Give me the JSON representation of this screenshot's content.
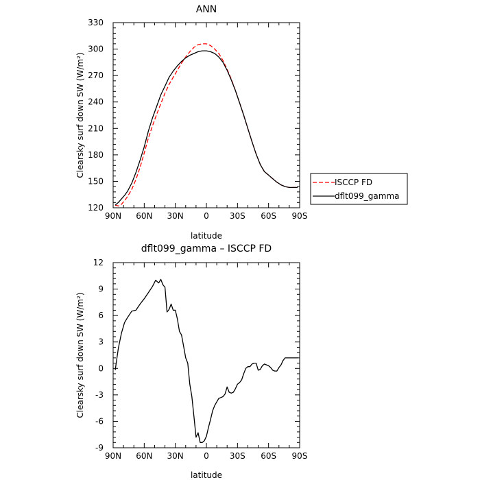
{
  "chart_data": [
    {
      "type": "line",
      "title": "ANN",
      "xlabel": "latitude",
      "ylabel": "Clearsky surf down SW (W/m²)",
      "xlim": [
        90,
        -90
      ],
      "ylim": [
        120,
        330
      ],
      "x_tick_values": [
        90,
        60,
        30,
        0,
        -30,
        -60,
        -90
      ],
      "x_tick_labels": [
        "90N",
        "60N",
        "30N",
        "0",
        "30S",
        "60S",
        "90S"
      ],
      "y_tick_values": [
        120,
        150,
        180,
        210,
        240,
        270,
        300,
        330
      ],
      "y_tick_labels": [
        "120",
        "150",
        "180",
        "210",
        "240",
        "270",
        "300",
        "330"
      ],
      "grid": false,
      "legend_position": "right",
      "series": [
        {
          "name": "ISCCP FD",
          "color": "#ff0000",
          "dash": "dashed",
          "x": [
            88,
            85,
            82,
            79,
            76,
            72,
            68,
            64,
            60,
            56,
            52,
            48,
            44,
            40,
            36,
            32,
            28,
            24,
            20,
            16,
            12,
            8,
            4,
            0,
            -4,
            -8,
            -12,
            -16,
            -20,
            -24,
            -28,
            -32,
            -36,
            -40,
            -44,
            -48,
            -52,
            -56,
            -60,
            -64,
            -68,
            -72,
            -76,
            -80,
            -84,
            -88
          ],
          "y": [
            123,
            122,
            124,
            128,
            133,
            141,
            152,
            166,
            182,
            199,
            213,
            226,
            238,
            250,
            260,
            268,
            276,
            284,
            291,
            297,
            302,
            305,
            306,
            306,
            304,
            300,
            295,
            287,
            277,
            266,
            253,
            239,
            225,
            210,
            195,
            181,
            169,
            161,
            157,
            153,
            149,
            146,
            144,
            143,
            143,
            143
          ]
        },
        {
          "name": "dflt099_gamma",
          "color": "#000000",
          "dash": "solid",
          "x": [
            88,
            85,
            82,
            79,
            76,
            72,
            68,
            64,
            60,
            56,
            52,
            48,
            44,
            40,
            36,
            32,
            28,
            24,
            20,
            16,
            12,
            8,
            4,
            0,
            -4,
            -8,
            -12,
            -16,
            -20,
            -24,
            -28,
            -32,
            -36,
            -40,
            -44,
            -48,
            -52,
            -56,
            -60,
            -64,
            -68,
            -72,
            -76,
            -80,
            -84,
            -88
          ],
          "y": [
            123,
            126,
            130,
            134,
            139,
            148,
            160,
            174,
            189,
            207,
            222,
            235,
            248,
            258,
            268,
            275,
            281,
            286,
            290,
            293,
            295,
            297,
            298,
            298,
            297,
            295,
            291,
            285,
            276,
            265,
            253,
            239,
            225,
            210,
            195,
            181,
            169,
            161,
            157,
            153,
            149,
            146,
            144,
            143,
            143,
            143
          ]
        }
      ]
    },
    {
      "type": "line",
      "title": "dflt099_gamma – ISCCP FD",
      "xlabel": "latitude",
      "ylabel": "Clearsky surf down SW (W/m²)",
      "xlim": [
        90,
        -90
      ],
      "ylim": [
        -9,
        12
      ],
      "x_tick_values": [
        90,
        60,
        30,
        0,
        -30,
        -60,
        -90
      ],
      "x_tick_labels": [
        "90N",
        "60N",
        "30N",
        "0",
        "30S",
        "60S",
        "90S"
      ],
      "y_tick_values": [
        -9,
        -6,
        -3,
        0,
        3,
        6,
        9,
        12
      ],
      "y_tick_labels": [
        "-9",
        "-6",
        "-3",
        "0",
        "3",
        "6",
        "9",
        "12"
      ],
      "grid": false,
      "series": [
        {
          "color": "#000000",
          "dash": "solid",
          "x": [
            88,
            85,
            82,
            79,
            76,
            72,
            68,
            64,
            60,
            56,
            52,
            49,
            46,
            44,
            42,
            40,
            38,
            36,
            34,
            32,
            30,
            28,
            26,
            24,
            22,
            20,
            18,
            16,
            14,
            12,
            10,
            8,
            6,
            4,
            2,
            0,
            -2,
            -4,
            -6,
            -8,
            -10,
            -12,
            -14,
            -16,
            -18,
            -20,
            -22,
            -24,
            -26,
            -28,
            -30,
            -32,
            -34,
            -36,
            -38,
            -40,
            -42,
            -44,
            -46,
            -48,
            -50,
            -52,
            -54,
            -56,
            -58,
            -60,
            -62,
            -64,
            -66,
            -68,
            -70,
            -72,
            -74,
            -76,
            -78,
            -80,
            -82,
            -84,
            -86,
            -88
          ],
          "y": [
            -0.2,
            2.3,
            4,
            5.2,
            5.8,
            6.5,
            6.6,
            7.3,
            7.9,
            8.6,
            9.3,
            10,
            9.7,
            10.1,
            9.5,
            9.2,
            6.4,
            6.7,
            7.3,
            6.6,
            6.6,
            5.6,
            4.2,
            3.8,
            2.5,
            1.2,
            0.6,
            -1.8,
            -3.2,
            -5.5,
            -7.8,
            -7.3,
            -8.4,
            -8.4,
            -8.2,
            -7.7,
            -6.7,
            -5.8,
            -4.8,
            -4.2,
            -3.8,
            -3.4,
            -3.3,
            -3.2,
            -2.9,
            -2.1,
            -2.7,
            -2.8,
            -2.7,
            -2.3,
            -1.8,
            -1.6,
            -1.3,
            -0.6,
            0,
            0.2,
            0.2,
            0.5,
            0.6,
            0.6,
            -0.2,
            -0.1,
            0.3,
            0.5,
            0.4,
            0.3,
            0.1,
            -0.2,
            -0.3,
            -0.3,
            0.1,
            0.4,
            0.9,
            1.2,
            1.2,
            1.2,
            1.2,
            1.2,
            1.2,
            1.2
          ]
        }
      ]
    }
  ]
}
